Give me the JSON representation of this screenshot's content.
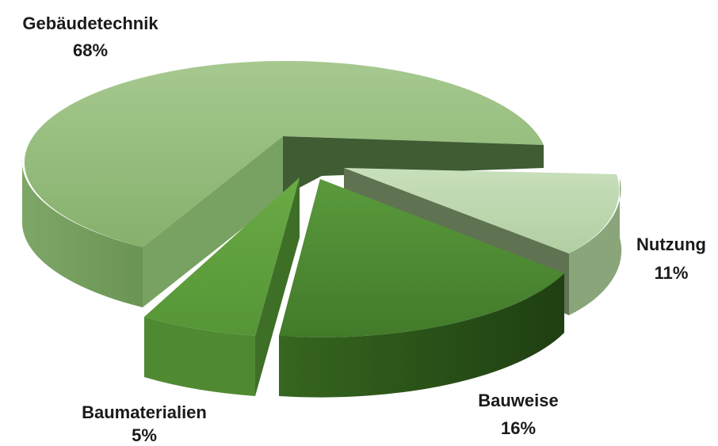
{
  "chart_data": {
    "type": "pie",
    "title": "",
    "slices": [
      {
        "label": "Gebäudetechnik",
        "value": 68,
        "pct_label": "68%"
      },
      {
        "label": "Nutzung",
        "value": 11,
        "pct_label": "11%"
      },
      {
        "label": "Bauweise",
        "value": 16,
        "pct_label": "16%"
      },
      {
        "label": "Baumaterialien",
        "value": 5,
        "pct_label": "5%"
      }
    ],
    "unit": "%",
    "style": "3d-exploded"
  },
  "colors": {
    "gebaeudetechnik_top": "#93bd7b",
    "gebaeudetechnik_side": "#6f9a5a",
    "nutzung_top": "#bcd6ad",
    "nutzung_side": "#7f9c70",
    "bauweise_top": "#4c8a32",
    "bauweise_side": "#2f5c1f",
    "baumaterialien_top": "#5f9f3e",
    "baumaterialien_side": "#4b8231"
  }
}
